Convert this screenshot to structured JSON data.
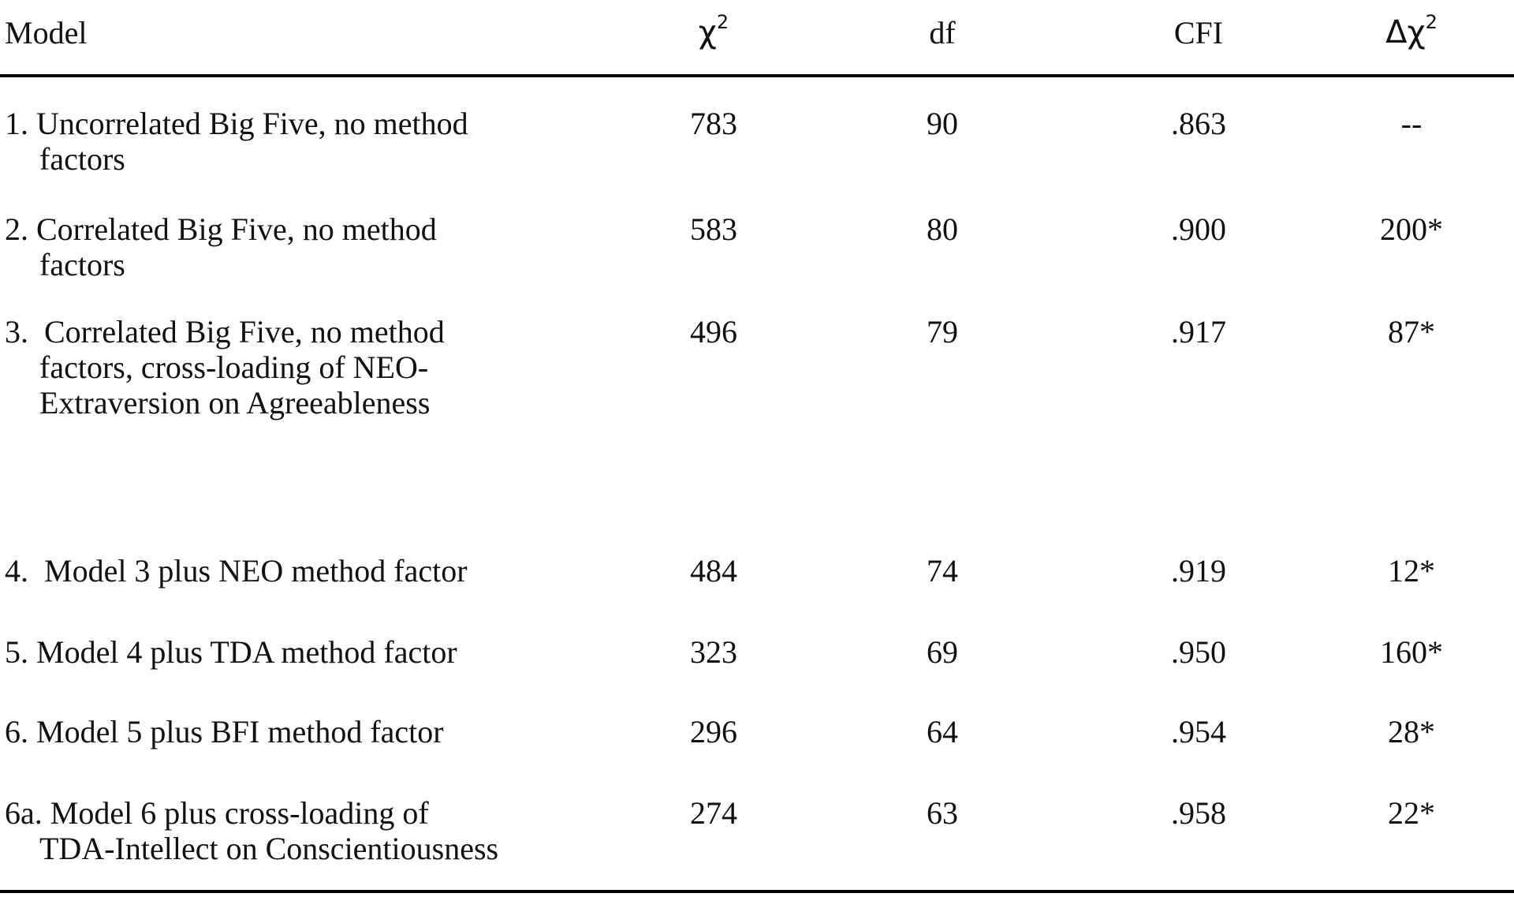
{
  "table": {
    "columns": [
      {
        "label": "Model"
      },
      {
        "label": "χ",
        "sup": "2"
      },
      {
        "label": "df"
      },
      {
        "label": "CFI"
      },
      {
        "label": "Δχ",
        "sup": "2"
      }
    ],
    "rows": [
      {
        "model_lines": [
          "1. Uncorrelated Big Five, no method",
          "factors"
        ],
        "chi2": "783",
        "df": "90",
        "cfi": ".863",
        "delta_chi2": "--"
      },
      {
        "model_lines": [
          "2. Correlated Big Five, no method",
          "factors"
        ],
        "chi2": "583",
        "df": "80",
        "cfi": ".900",
        "delta_chi2": "200*"
      },
      {
        "model_lines": [
          "3.  Correlated Big Five, no method",
          "factors, cross-loading of NEO-",
          "Extraversion on Agreeableness"
        ],
        "chi2": "496",
        "df": "79",
        "cfi": ".917",
        "delta_chi2": "87*"
      },
      {
        "model_lines": [
          "4.  Model 3 plus NEO method factor"
        ],
        "chi2": "484",
        "df": "74",
        "cfi": ".919",
        "delta_chi2": "12*"
      },
      {
        "model_lines": [
          "5. Model 4 plus TDA method factor"
        ],
        "chi2": "323",
        "df": "69",
        "cfi": ".950",
        "delta_chi2": "160*"
      },
      {
        "model_lines": [
          "6. Model 5 plus BFI method factor"
        ],
        "chi2": "296",
        "df": "64",
        "cfi": ".954",
        "delta_chi2": "28*"
      },
      {
        "model_lines": [
          "6a. Model 6 plus cross-loading of",
          "TDA-Intellect on Conscientiousness"
        ],
        "chi2": "274",
        "df": "63",
        "cfi": ".958",
        "delta_chi2": "22*"
      }
    ]
  }
}
